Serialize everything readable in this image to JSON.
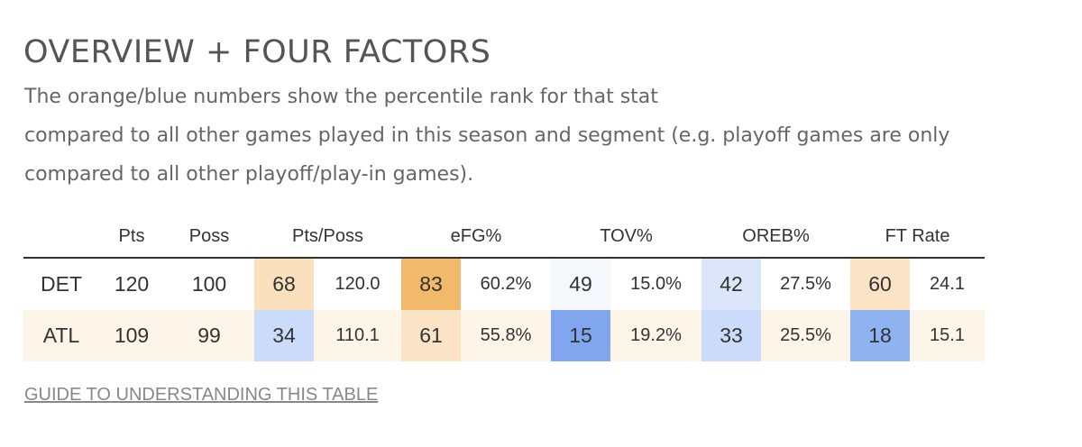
{
  "title": "OVERVIEW + FOUR FACTORS",
  "description": {
    "line1": "The orange/blue numbers show the percentile rank for that stat",
    "line2": "compared to all other games played in this season and segment (e.g. playoff games are only",
    "line3": "compared to all other playoff/play-in games)."
  },
  "table": {
    "headers": {
      "team": "",
      "pts": "Pts",
      "poss": "Poss",
      "pts_poss": "Pts/Poss",
      "efg": "eFG%",
      "tov": "TOV%",
      "oreb": "OREB%",
      "ft_rate": "FT Rate"
    },
    "rows": [
      {
        "team": "DET",
        "pts": "120",
        "poss": "100",
        "pts_poss_pct": "68",
        "pts_poss_val": "120.0",
        "efg_pct": "83",
        "efg_val": "60.2%",
        "tov_pct": "49",
        "tov_val": "15.0%",
        "oreb_pct": "42",
        "oreb_val": "27.5%",
        "ft_pct": "60",
        "ft_val": "24.1",
        "colors": {
          "pts_poss": "#fbe0bd",
          "efg": "#f2b96a",
          "tov": "#f6f8fd",
          "oreb": "#dbe6fb",
          "ft": "#fbe3c6"
        }
      },
      {
        "team": "ATL",
        "pts": "109",
        "poss": "99",
        "pts_poss_pct": "34",
        "pts_poss_val": "110.1",
        "efg_pct": "61",
        "efg_val": "55.8%",
        "tov_pct": "15",
        "tov_val": "19.2%",
        "oreb_pct": "33",
        "oreb_val": "25.5%",
        "ft_pct": "18",
        "ft_val": "15.1",
        "colors": {
          "pts_poss": "#cadcf9",
          "efg": "#fbe4c6",
          "tov": "#7fa6ef",
          "oreb": "#cadcf9",
          "ft": "#8fb2f1"
        }
      }
    ]
  },
  "guide_link": "GUIDE TO UNDERSTANDING THIS TABLE"
}
